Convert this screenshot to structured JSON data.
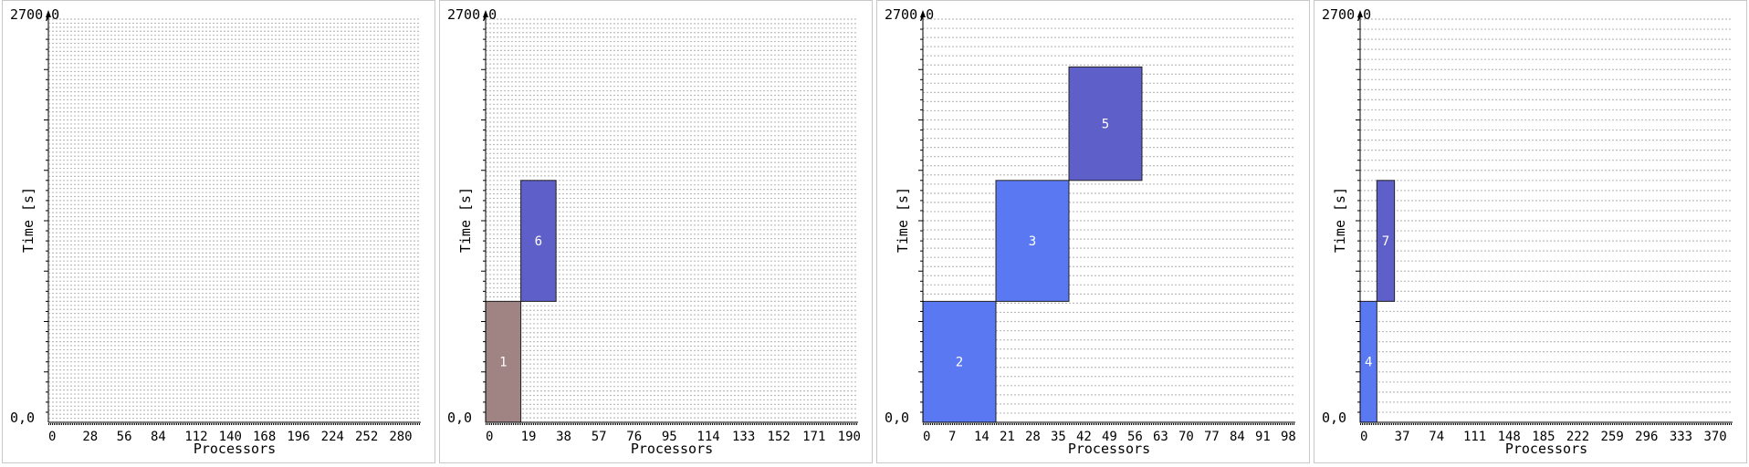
{
  "chart_data": [
    {
      "type": "gantt",
      "xlabel": "Processors",
      "ylabel": "Time [s]",
      "ylim": [
        0,
        2700
      ],
      "y_tick_labels": [
        "0,0",
        "2700,0"
      ],
      "x_ticks": [
        0,
        28,
        56,
        84,
        112,
        140,
        168,
        196,
        224,
        252,
        280
      ],
      "xlim": [
        0,
        306
      ],
      "rows": 100,
      "jobs": []
    },
    {
      "type": "gantt",
      "xlabel": "Processors",
      "ylabel": "Time [s]",
      "ylim": [
        0,
        2700
      ],
      "y_tick_labels": [
        "0,0",
        "2700,0"
      ],
      "x_ticks": [
        0,
        19,
        38,
        57,
        76,
        95,
        114,
        133,
        152,
        171,
        190
      ],
      "xlim": [
        0,
        201
      ],
      "rows": 90,
      "jobs": [
        {
          "label": "1",
          "x0": 0,
          "x1": 19,
          "y0": 0,
          "y1": 810,
          "color": "#a08484"
        },
        {
          "label": "6",
          "x0": 19,
          "x1": 38,
          "y0": 810,
          "y1": 1620,
          "color": "#5f5fc9"
        }
      ]
    },
    {
      "type": "gantt",
      "xlabel": "Processors",
      "ylabel": "Time [s]",
      "ylim": [
        0,
        2700
      ],
      "y_tick_labels": [
        "0,0",
        "2700,0"
      ],
      "x_ticks": [
        0,
        7,
        14,
        21,
        28,
        35,
        42,
        49,
        56,
        63,
        70,
        77,
        84,
        91,
        98
      ],
      "xlim": [
        0,
        102
      ],
      "rows": 44,
      "jobs": [
        {
          "label": "2",
          "x0": 0,
          "x1": 20,
          "y0": 0,
          "y1": 810,
          "color": "#5a78f2"
        },
        {
          "label": "3",
          "x0": 20,
          "x1": 40,
          "y0": 810,
          "y1": 1620,
          "color": "#5a78f2"
        },
        {
          "label": "5",
          "x0": 40,
          "x1": 60,
          "y0": 1620,
          "y1": 2380,
          "color": "#5f5fc9"
        }
      ]
    },
    {
      "type": "gantt",
      "xlabel": "Processors",
      "ylabel": "Time [s]",
      "ylim": [
        0,
        2700
      ],
      "y_tick_labels": [
        "0,0",
        "2700,0"
      ],
      "x_ticks": [
        0,
        37,
        74,
        111,
        148,
        185,
        222,
        259,
        296,
        333,
        370
      ],
      "xlim": [
        0,
        401
      ],
      "rows": 40,
      "jobs": [
        {
          "label": "4",
          "x0": 0,
          "x1": 18,
          "y0": 0,
          "y1": 810,
          "color": "#5a78f2"
        },
        {
          "label": "7",
          "x0": 18,
          "x1": 37,
          "y0": 810,
          "y1": 1620,
          "color": "#5f5fc9"
        }
      ]
    }
  ]
}
